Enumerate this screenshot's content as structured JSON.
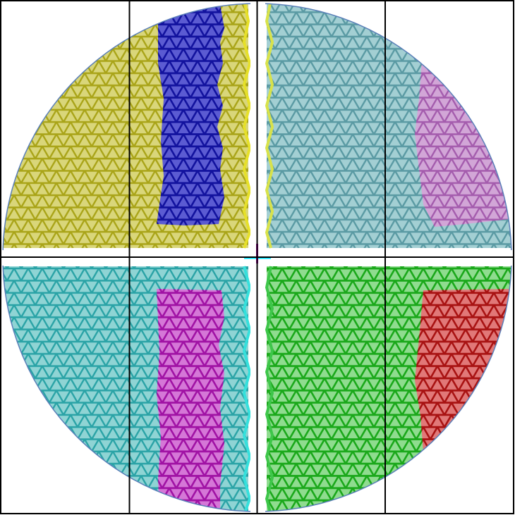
{
  "figure": {
    "type": "partitioned-triangular-mesh",
    "shape": "disk",
    "quadrants": [
      {
        "id": "top-left",
        "regions": [
          {
            "name": "top-left-outer",
            "color": "#b5b020",
            "edge_color": "#e8e020"
          },
          {
            "name": "top-left-inner",
            "color": "#1c1cb4"
          }
        ]
      },
      {
        "id": "top-right",
        "regions": [
          {
            "name": "top-right-outer",
            "color": "#62a6ae",
            "edge_color": "#d6e04a"
          },
          {
            "name": "top-right-inner",
            "color": "#b067b8"
          }
        ]
      },
      {
        "id": "bottom-left",
        "regions": [
          {
            "name": "bottom-left-outer",
            "color": "#2fb0b0",
            "edge_color": "#35e0dc"
          },
          {
            "name": "bottom-left-inner",
            "color": "#b01cb4"
          }
        ]
      },
      {
        "id": "bottom-right",
        "regions": [
          {
            "name": "bottom-right-outer",
            "color": "#26b526",
            "edge_color": "#3ec64a"
          },
          {
            "name": "bottom-right-inner",
            "color": "#b81c1c"
          }
        ]
      }
    ],
    "grid_color": "#000000",
    "center_marker_colors": [
      "#00e5ff",
      "#b000b0"
    ]
  }
}
